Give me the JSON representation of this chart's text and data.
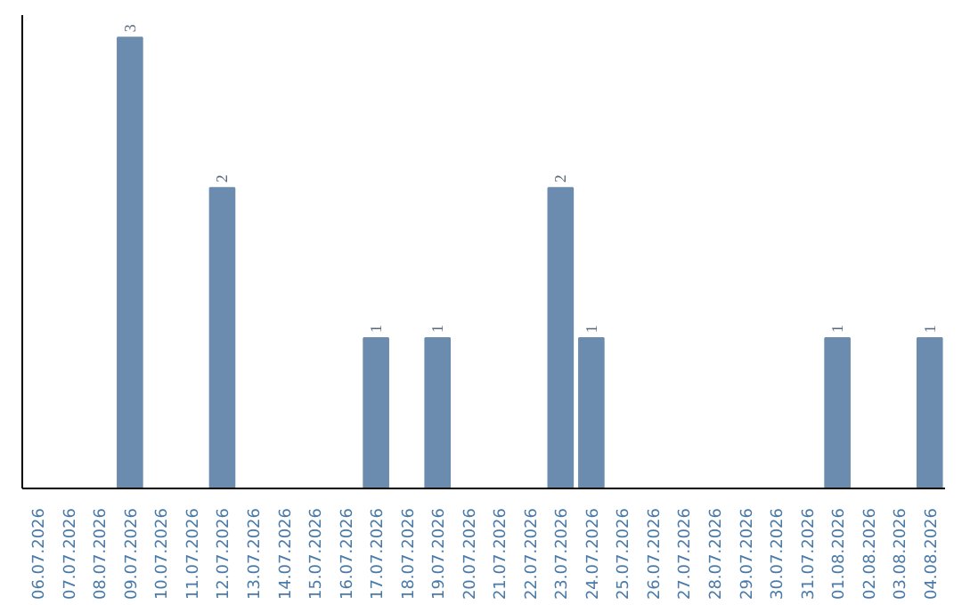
{
  "chart_data": {
    "type": "bar",
    "categories": [
      "06.07.2026",
      "07.07.2026",
      "08.07.2026",
      "09.07.2026",
      "10.07.2026",
      "11.07.2026",
      "12.07.2026",
      "13.07.2026",
      "14.07.2026",
      "15.07.2026",
      "16.07.2026",
      "17.07.2026",
      "18.07.2026",
      "19.07.2026",
      "20.07.2026",
      "21.07.2026",
      "22.07.2026",
      "23.07.2026",
      "24.07.2026",
      "25.07.2026",
      "26.07.2026",
      "27.07.2026",
      "28.07.2026",
      "29.07.2026",
      "30.07.2026",
      "31.07.2026",
      "01.08.2026",
      "02.08.2026",
      "03.08.2026",
      "04.08.2026"
    ],
    "values": [
      0,
      0,
      0,
      3,
      0,
      0,
      2,
      0,
      0,
      0,
      0,
      1,
      0,
      1,
      0,
      0,
      0,
      2,
      1,
      0,
      0,
      0,
      0,
      0,
      0,
      0,
      1,
      0,
      0,
      1
    ],
    "value_labels": [
      null,
      null,
      null,
      "3",
      null,
      null,
      "2",
      null,
      null,
      null,
      null,
      "1",
      null,
      "1",
      null,
      null,
      null,
      "2",
      "1",
      null,
      null,
      null,
      null,
      null,
      null,
      null,
      "1",
      null,
      null,
      "1"
    ],
    "color": "#6b8cae",
    "grid": false
  }
}
